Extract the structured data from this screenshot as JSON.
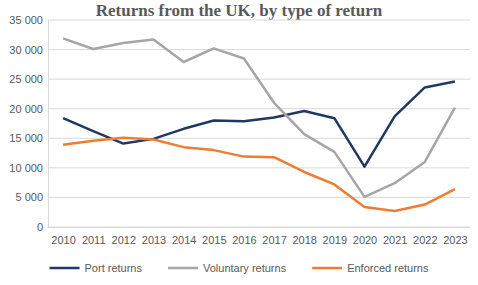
{
  "chart_data": {
    "type": "line",
    "title": "Returns from the UK, by type of return",
    "categories": [
      "2010",
      "2011",
      "2012",
      "2013",
      "2014",
      "2015",
      "2016",
      "2017",
      "2018",
      "2019",
      "2020",
      "2021",
      "2022",
      "2023"
    ],
    "series": [
      {
        "name": "Port returns",
        "color": "#203864",
        "values": [
          18400,
          16200,
          14100,
          14900,
          16600,
          18000,
          17900,
          18500,
          19600,
          18400,
          10200,
          18700,
          23600,
          24600
        ]
      },
      {
        "name": "Voluntary returns",
        "color": "#a6a6a6",
        "values": [
          31900,
          30100,
          31100,
          31700,
          27900,
          30200,
          28500,
          21000,
          15700,
          12700,
          5100,
          7400,
          11000,
          20200
        ]
      },
      {
        "name": "Enforced returns",
        "color": "#ed7d31",
        "values": [
          13900,
          14600,
          15100,
          14800,
          13500,
          13000,
          11900,
          11800,
          9300,
          7200,
          3400,
          2700,
          3800,
          6400
        ]
      }
    ],
    "ylim": [
      0,
      35000
    ],
    "yticks": [
      0,
      {
        "value": 5000,
        "label": "5 000"
      },
      {
        "value": 10000,
        "label": "10 000"
      },
      {
        "value": 15000,
        "label": "15 000"
      },
      {
        "value": 20000,
        "label": "20 000"
      },
      {
        "value": 25000,
        "label": "25 000"
      },
      {
        "value": 30000,
        "label": "30 000"
      },
      {
        "value": 35000,
        "label": "35 000"
      }
    ],
    "grid": true,
    "legend": "bottom"
  }
}
